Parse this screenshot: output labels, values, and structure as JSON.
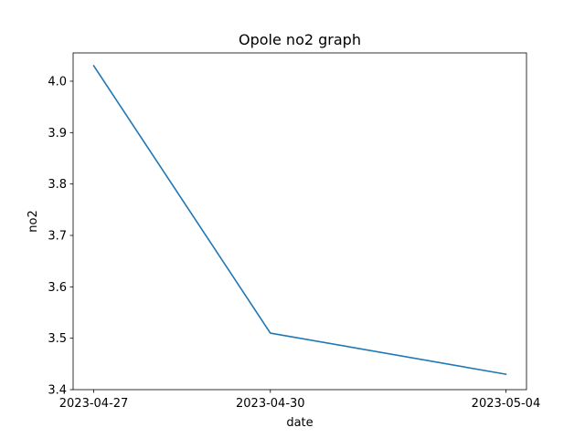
{
  "chart_data": {
    "type": "line",
    "title": "Opole no2 graph",
    "xlabel": "date",
    "ylabel": "no2",
    "x": [
      "2023-04-27",
      "2023-04-30",
      "2023-05-04"
    ],
    "series": [
      {
        "values": [
          4.03,
          3.51,
          3.43
        ],
        "color": "#1f77b4"
      }
    ],
    "ylim": [
      3.4,
      4.055
    ],
    "yticks": [
      "3.4",
      "3.5",
      "3.6",
      "3.7",
      "3.8",
      "3.9",
      "4.0"
    ],
    "xticks": [
      "2023-04-27",
      "2023-04-30",
      "2023-05-04"
    ],
    "grid": false,
    "legend": "none"
  }
}
